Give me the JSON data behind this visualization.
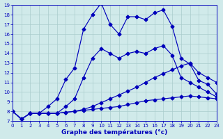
{
  "xlabel": "Graphe des températures (°c)",
  "xlim": [
    0,
    23
  ],
  "ylim": [
    7,
    19
  ],
  "yticks": [
    7,
    8,
    9,
    10,
    11,
    12,
    13,
    14,
    15,
    16,
    17,
    18,
    19
  ],
  "xticks": [
    0,
    1,
    2,
    3,
    4,
    5,
    6,
    7,
    8,
    9,
    10,
    11,
    12,
    13,
    14,
    15,
    16,
    17,
    18,
    19,
    20,
    21,
    22,
    23
  ],
  "bg_color": "#d0eaea",
  "line_color": "#0000bb",
  "grid_color": "#aacccc",
  "line1_y": [
    8.0,
    7.2,
    7.8,
    7.8,
    7.8,
    7.8,
    7.9,
    8.0,
    8.1,
    8.2,
    8.3,
    8.4,
    8.5,
    8.7,
    8.9,
    9.1,
    9.2,
    9.3,
    9.4,
    9.5,
    9.6,
    9.5,
    9.4,
    9.3
  ],
  "line2_y": [
    8.0,
    7.2,
    7.8,
    7.8,
    7.8,
    7.8,
    7.9,
    8.0,
    8.2,
    8.5,
    8.9,
    9.3,
    9.7,
    10.1,
    10.5,
    11.0,
    11.5,
    11.9,
    12.3,
    12.7,
    13.0,
    12.0,
    11.5,
    11.0
  ],
  "line3_y": [
    8.0,
    7.2,
    7.8,
    7.8,
    7.8,
    7.8,
    8.5,
    9.3,
    11.5,
    13.5,
    14.5,
    14.0,
    13.5,
    14.0,
    14.2,
    14.0,
    14.5,
    14.8,
    13.8,
    11.5,
    11.0,
    10.5,
    10.0,
    9.5
  ],
  "line4_y": [
    8.0,
    7.2,
    7.8,
    7.8,
    8.5,
    9.3,
    11.3,
    12.5,
    16.5,
    18.0,
    19.2,
    17.0,
    16.0,
    17.8,
    17.8,
    17.5,
    18.2,
    18.5,
    16.8,
    13.5,
    12.9,
    11.2,
    10.8,
    9.8
  ]
}
